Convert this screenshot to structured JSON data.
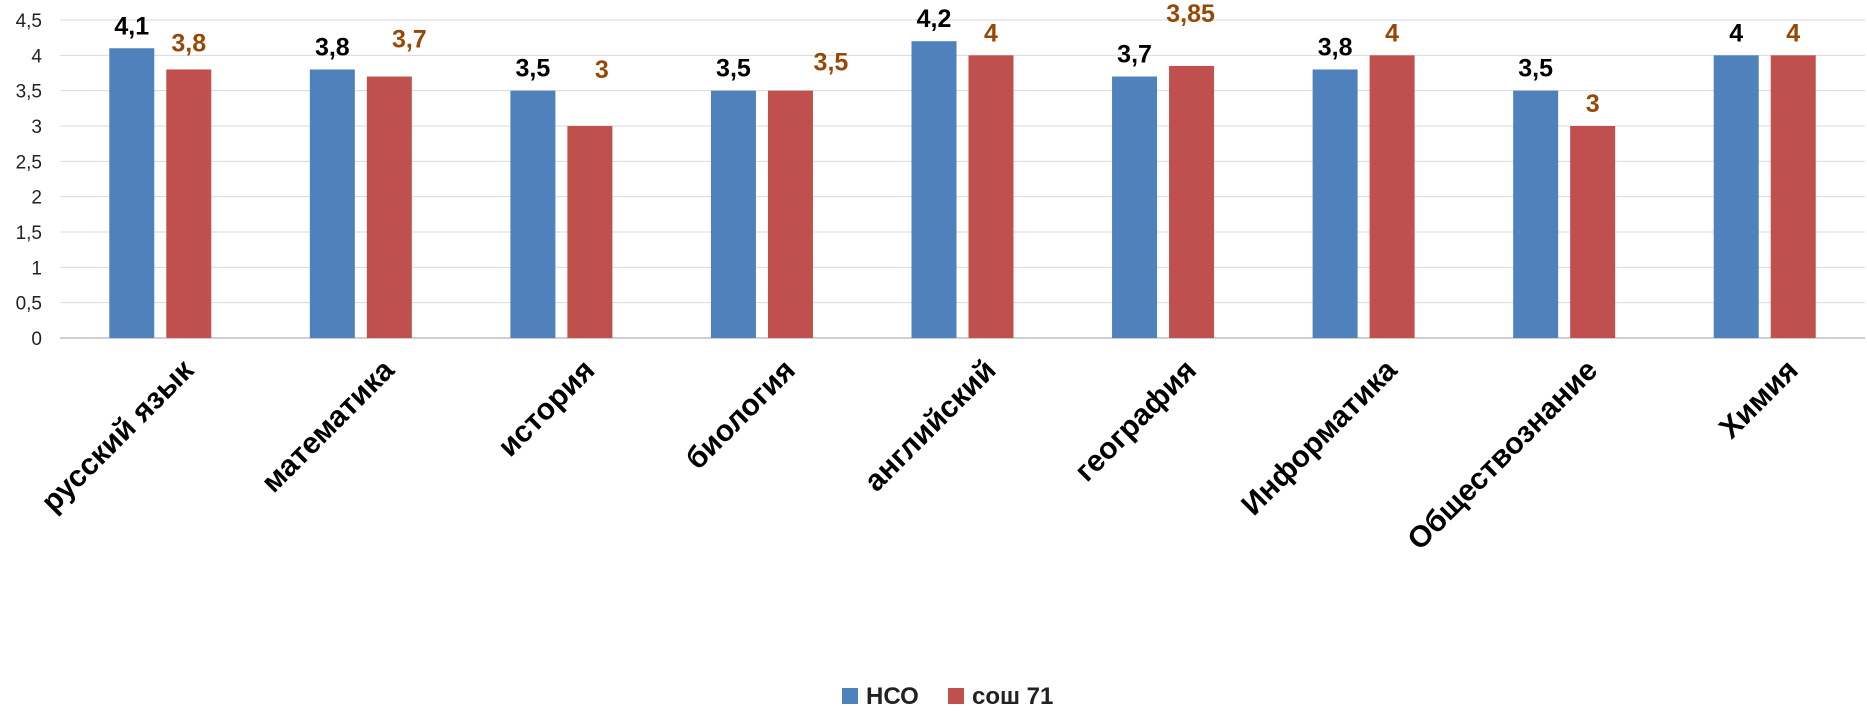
{
  "chart_data": {
    "type": "bar",
    "title": "",
    "xlabel": "",
    "ylabel": "",
    "ylim": [
      0,
      4.5
    ],
    "ytick_step": 0.5,
    "yticks": [
      "0",
      "0,5",
      "1",
      "1,5",
      "2",
      "2,5",
      "3",
      "3,5",
      "4",
      "4,5"
    ],
    "grid": true,
    "legend_position": "bottom",
    "categories": [
      "русский язык",
      "математика",
      "история",
      "биология",
      "английский",
      "география",
      "Информатика",
      "Обществознание",
      "Химия"
    ],
    "series": [
      {
        "name": "НСО",
        "color": "#4f81bd",
        "label_color": "#000000",
        "values": [
          4.1,
          3.8,
          3.5,
          3.5,
          4.2,
          3.7,
          3.8,
          3.5,
          4
        ],
        "labels": [
          "4,1",
          "3,8",
          "3,5",
          "3,5",
          "4,2",
          "3,7",
          "3,8",
          "3,5",
          "4"
        ]
      },
      {
        "name": "сош 71",
        "color": "#c0504d",
        "label_color": "#984806",
        "values": [
          3.8,
          3.7,
          3,
          3.5,
          4,
          3.85,
          4,
          3,
          4
        ],
        "labels": [
          "3,8",
          "3,7",
          "3",
          "3,5",
          "4",
          "3,85",
          "4",
          "3",
          "4"
        ]
      }
    ]
  }
}
